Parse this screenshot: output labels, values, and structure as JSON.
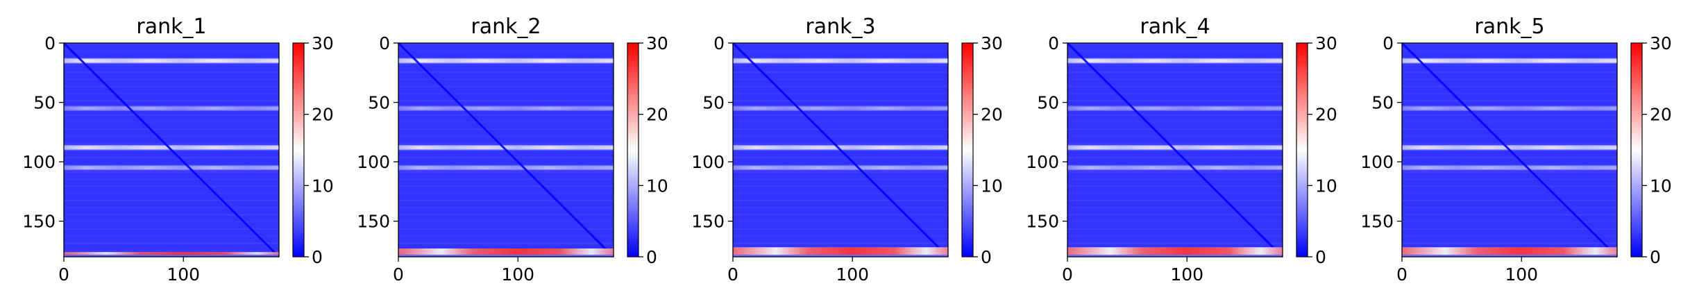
{
  "chart_data": [
    {
      "type": "heatmap",
      "title": "rank_1",
      "xlabel": "",
      "ylabel": "",
      "xlim": [
        0,
        180
      ],
      "ylim": [
        180,
        0
      ],
      "xticks": [
        0,
        100
      ],
      "yticks": [
        0,
        50,
        100,
        150
      ],
      "colorbar": {
        "range": [
          0,
          30
        ],
        "ticks": [
          0,
          10,
          20,
          30
        ],
        "colormap": [
          "#0000ff",
          "#ffffff",
          "#ff0000"
        ]
      },
      "features": {
        "background_value": 3,
        "diagonal_value": 0,
        "bright_rows": [
          {
            "row": 15,
            "value": 14
          },
          {
            "row": 55,
            "value": 8
          },
          {
            "row": 88,
            "value": 13
          },
          {
            "row": 105,
            "value": 9
          }
        ],
        "bottom_band": {
          "rows": [
            176,
            180
          ],
          "value": 18
        }
      }
    },
    {
      "type": "heatmap",
      "title": "rank_2",
      "xlabel": "",
      "ylabel": "",
      "xlim": [
        0,
        180
      ],
      "ylim": [
        180,
        0
      ],
      "xticks": [
        0,
        100
      ],
      "yticks": [
        0,
        50,
        100,
        150
      ],
      "colorbar": {
        "range": [
          0,
          30
        ],
        "ticks": [
          0,
          10,
          20,
          30
        ],
        "colormap": [
          "#0000ff",
          "#ffffff",
          "#ff0000"
        ]
      },
      "features": {
        "background_value": 3,
        "diagonal_value": 0,
        "bright_rows": [
          {
            "row": 15,
            "value": 14
          },
          {
            "row": 55,
            "value": 8
          },
          {
            "row": 88,
            "value": 13
          },
          {
            "row": 105,
            "value": 9
          }
        ],
        "bottom_band": {
          "rows": [
            173,
            180
          ],
          "value": 20
        }
      }
    },
    {
      "type": "heatmap",
      "title": "rank_3",
      "xlabel": "",
      "ylabel": "",
      "xlim": [
        0,
        180
      ],
      "ylim": [
        180,
        0
      ],
      "xticks": [
        0,
        100
      ],
      "yticks": [
        0,
        50,
        100,
        150
      ],
      "colorbar": {
        "range": [
          0,
          30
        ],
        "ticks": [
          0,
          10,
          20,
          30
        ],
        "colormap": [
          "#0000ff",
          "#ffffff",
          "#ff0000"
        ]
      },
      "features": {
        "background_value": 3,
        "diagonal_value": 0,
        "bright_rows": [
          {
            "row": 15,
            "value": 14
          },
          {
            "row": 55,
            "value": 8
          },
          {
            "row": 88,
            "value": 13
          },
          {
            "row": 105,
            "value": 9
          }
        ],
        "bottom_band": {
          "rows": [
            172,
            180
          ],
          "value": 21
        }
      }
    },
    {
      "type": "heatmap",
      "title": "rank_4",
      "xlabel": "",
      "ylabel": "",
      "xlim": [
        0,
        180
      ],
      "ylim": [
        180,
        0
      ],
      "xticks": [
        0,
        100
      ],
      "yticks": [
        0,
        50,
        100,
        150
      ],
      "colorbar": {
        "range": [
          0,
          30
        ],
        "ticks": [
          0,
          10,
          20,
          30
        ],
        "colormap": [
          "#0000ff",
          "#ffffff",
          "#ff0000"
        ]
      },
      "features": {
        "background_value": 3,
        "diagonal_value": 0,
        "bright_rows": [
          {
            "row": 15,
            "value": 14
          },
          {
            "row": 55,
            "value": 8
          },
          {
            "row": 88,
            "value": 13
          },
          {
            "row": 105,
            "value": 9
          }
        ],
        "bottom_band": {
          "rows": [
            172,
            180
          ],
          "value": 21
        }
      }
    },
    {
      "type": "heatmap",
      "title": "rank_5",
      "xlabel": "",
      "ylabel": "",
      "xlim": [
        0,
        180
      ],
      "ylim": [
        180,
        0
      ],
      "xticks": [
        0,
        100
      ],
      "yticks": [
        0,
        50,
        100,
        150
      ],
      "colorbar": {
        "range": [
          0,
          30
        ],
        "ticks": [
          0,
          10,
          20,
          30
        ],
        "colormap": [
          "#0000ff",
          "#ffffff",
          "#ff0000"
        ]
      },
      "features": {
        "background_value": 3,
        "diagonal_value": 0,
        "bright_rows": [
          {
            "row": 15,
            "value": 14
          },
          {
            "row": 55,
            "value": 8
          },
          {
            "row": 88,
            "value": 13
          },
          {
            "row": 105,
            "value": 9
          }
        ],
        "bottom_band": {
          "rows": [
            172,
            180
          ],
          "value": 21
        }
      }
    }
  ]
}
